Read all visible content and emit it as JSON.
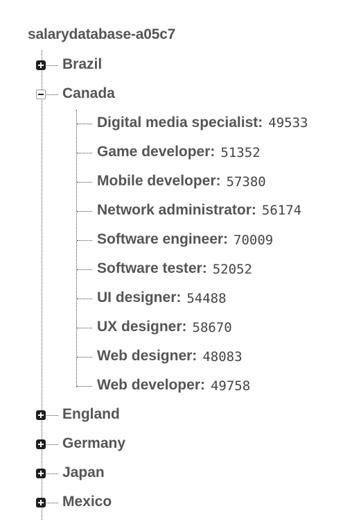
{
  "root": {
    "title": "salarydatabase-a05c7"
  },
  "countries": [
    {
      "label": "Brazil",
      "state": "collapsed"
    },
    {
      "label": "Canada",
      "state": "expanded"
    },
    {
      "label": "England",
      "state": "collapsed"
    },
    {
      "label": "Germany",
      "state": "collapsed"
    },
    {
      "label": "Japan",
      "state": "collapsed"
    },
    {
      "label": "Mexico",
      "state": "collapsed"
    }
  ],
  "canada_children": [
    {
      "key": "Digital media specialist:",
      "value": "49533"
    },
    {
      "key": "Game developer:",
      "value": "51352"
    },
    {
      "key": "Mobile developer:",
      "value": "57380"
    },
    {
      "key": "Network administrator:",
      "value": "56174"
    },
    {
      "key": "Software engineer:",
      "value": "70009"
    },
    {
      "key": "Software tester:",
      "value": "52052"
    },
    {
      "key": "UI designer:",
      "value": "54488"
    },
    {
      "key": "UX designer:",
      "value": "58670"
    },
    {
      "key": "Web designer:",
      "value": "48083"
    },
    {
      "key": "Web developer:",
      "value": "49758"
    }
  ],
  "icons": {
    "collapsed": "expand-plus-icon",
    "expanded": "collapse-minus-icon"
  }
}
